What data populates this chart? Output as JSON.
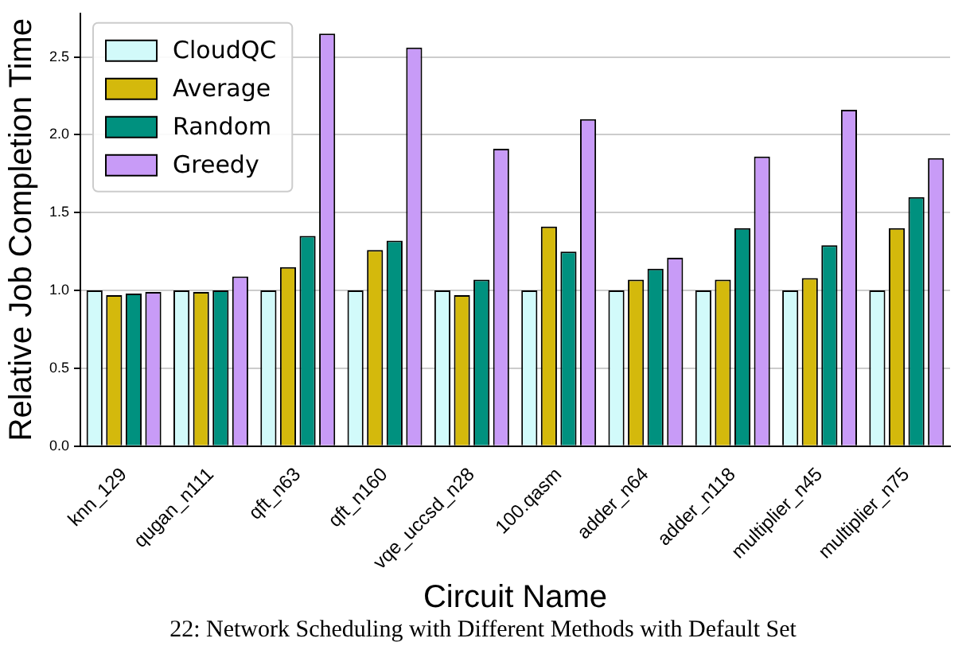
{
  "chart_data": {
    "type": "bar",
    "xlabel": "Circuit Name",
    "ylabel": "Relative Job Completion Time",
    "categories": [
      "knn_129",
      "qugan_n111",
      "qft_n63",
      "qft_n160",
      "vqe_uccsd_n28",
      "100.qasm",
      "adder_n64",
      "adder_n118",
      "multiplier_n45",
      "multiplier_n75"
    ],
    "series": [
      {
        "name": "CloudQC",
        "color": "#d2fafa",
        "values": [
          1.0,
          1.0,
          1.0,
          1.0,
          1.0,
          1.0,
          1.0,
          1.0,
          1.0,
          1.0
        ]
      },
      {
        "name": "Average",
        "color": "#d4b90c",
        "values": [
          0.97,
          0.99,
          1.15,
          1.26,
          0.97,
          1.41,
          1.07,
          1.07,
          1.08,
          1.4
        ]
      },
      {
        "name": "Random",
        "color": "#00917f",
        "values": [
          0.98,
          1.0,
          1.35,
          1.32,
          1.07,
          1.25,
          1.14,
          1.4,
          1.29,
          1.6
        ]
      },
      {
        "name": "Greedy",
        "color": "#c89bf7",
        "values": [
          0.99,
          1.09,
          2.65,
          2.56,
          1.91,
          2.1,
          1.21,
          1.86,
          2.16,
          1.85
        ]
      }
    ],
    "ylim": [
      0,
      2.78
    ],
    "yticks": [
      {
        "value": 0,
        "label": "0.0"
      },
      {
        "value": 0.5,
        "label": "0.5"
      },
      {
        "value": 1,
        "label": "1.0"
      },
      {
        "value": 1.5,
        "label": "1.5"
      },
      {
        "value": 2,
        "label": "2.0"
      },
      {
        "value": 2.5,
        "label": "2.5"
      }
    ],
    "grid": "y",
    "legend": "top left",
    "annotations": [
      "22: Network Scheduling with Different Methods with Default Set"
    ]
  }
}
